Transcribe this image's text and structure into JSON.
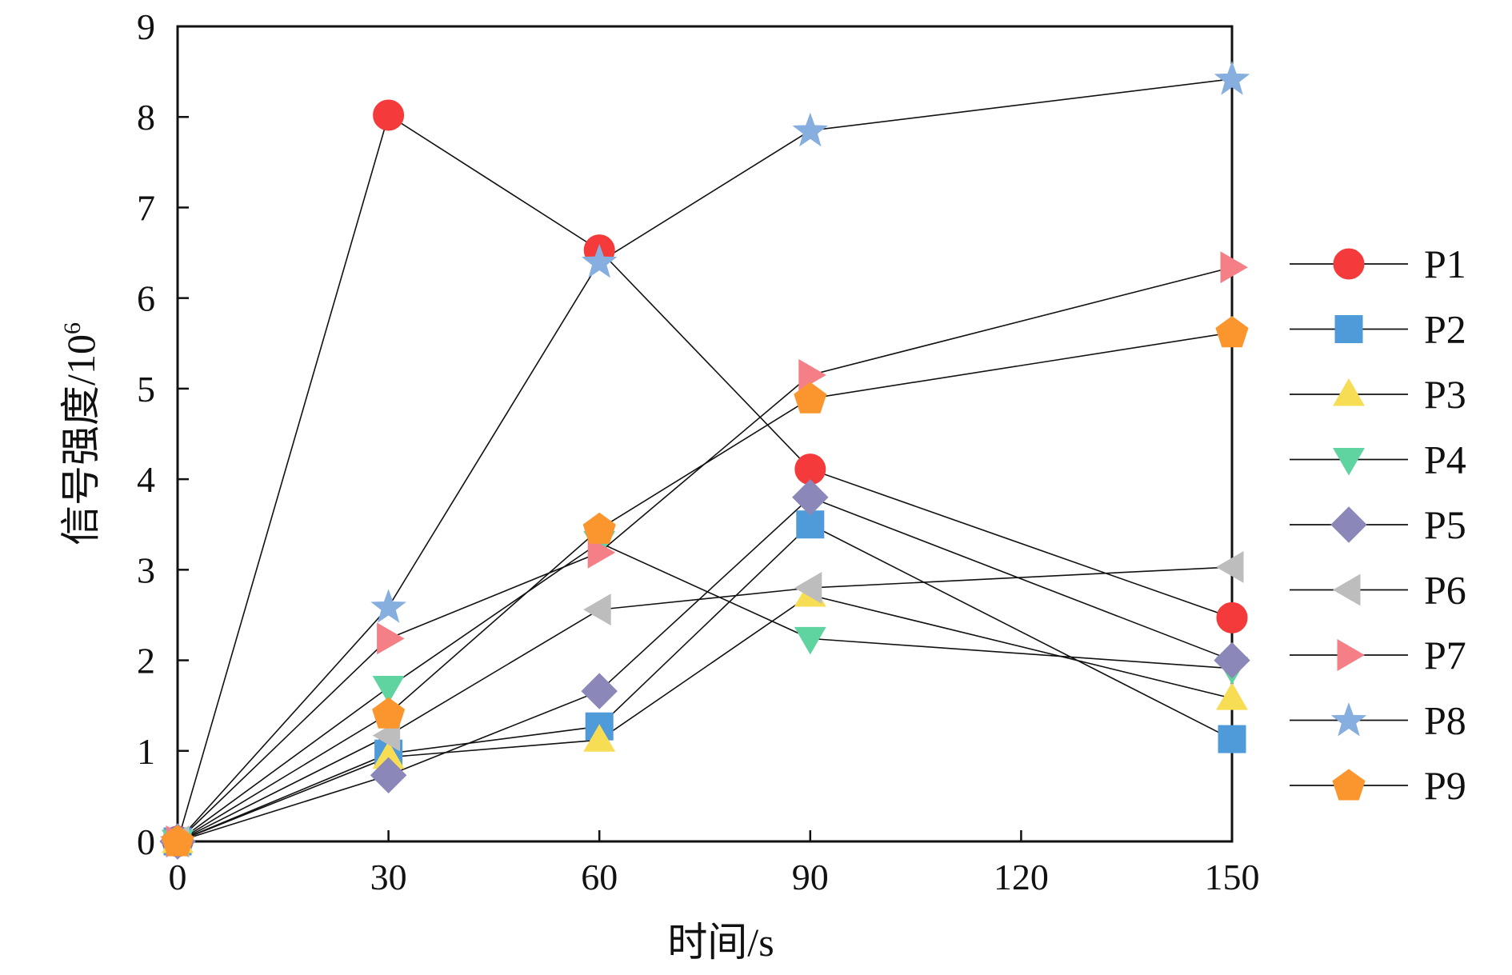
{
  "chart_data": {
    "type": "line",
    "xlabel": "时间/s",
    "ylabel_main": "信号强度/10",
    "ylabel_exp": "6",
    "xlim": [
      0,
      150
    ],
    "ylim": [
      0,
      9
    ],
    "xticks": [
      0,
      30,
      60,
      90,
      120,
      150
    ],
    "yticks": [
      0,
      1,
      2,
      3,
      4,
      5,
      6,
      7,
      8,
      9
    ],
    "x": [
      0,
      30,
      60,
      90,
      150
    ],
    "grid": false,
    "legend_position": "right",
    "series": [
      {
        "name": "P1",
        "marker": "circle",
        "color": "#f43a3a",
        "values": [
          0,
          8.02,
          6.53,
          4.11,
          2.47
        ]
      },
      {
        "name": "P2",
        "marker": "square",
        "color": "#4f9ad8",
        "values": [
          0,
          0.97,
          1.27,
          3.5,
          1.13
        ]
      },
      {
        "name": "P3",
        "marker": "triangle-up",
        "color": "#f7dd54",
        "values": [
          0,
          0.93,
          1.12,
          2.72,
          1.58
        ]
      },
      {
        "name": "P4",
        "marker": "triangle-down",
        "color": "#5fd4a0",
        "values": [
          0,
          1.7,
          3.3,
          2.24,
          1.91
        ]
      },
      {
        "name": "P5",
        "marker": "diamond",
        "color": "#8b87b8",
        "values": [
          0,
          0.73,
          1.66,
          3.8,
          2.0
        ]
      },
      {
        "name": "P6",
        "marker": "triangle-left",
        "color": "#bdbdbd",
        "values": [
          0,
          1.17,
          2.56,
          2.8,
          3.03
        ]
      },
      {
        "name": "P7",
        "marker": "triangle-right",
        "color": "#f57f86",
        "values": [
          0,
          2.24,
          3.19,
          5.15,
          6.34
        ]
      },
      {
        "name": "P8",
        "marker": "star",
        "color": "#86aede",
        "values": [
          0,
          2.59,
          6.4,
          7.85,
          8.42
        ]
      },
      {
        "name": "P9",
        "marker": "pentagon",
        "color": "#fb962f",
        "values": [
          0,
          1.41,
          3.45,
          4.89,
          5.62
        ]
      }
    ]
  }
}
